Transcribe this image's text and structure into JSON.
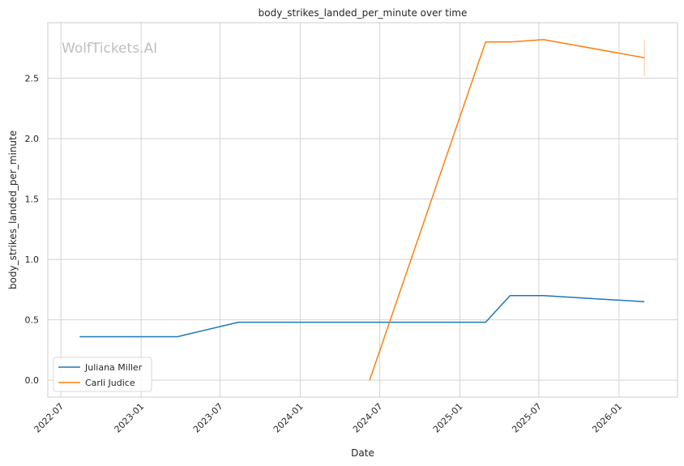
{
  "chart_data": {
    "type": "line",
    "title": "body_strikes_landed_per_minute over time",
    "xlabel": "Date",
    "ylabel": "body_strikes_landed_per_minute",
    "watermark": "WolfTickets.AI",
    "x_axis_type": "date",
    "xlim": [
      "2022-06-01",
      "2026-05-15"
    ],
    "ylim": [
      -0.14,
      2.96
    ],
    "x_ticks": [
      "2022-07",
      "2023-01",
      "2023-07",
      "2024-01",
      "2024-07",
      "2025-01",
      "2025-07",
      "2026-01"
    ],
    "y_ticks": [
      "0.0",
      "0.5",
      "1.0",
      "1.5",
      "2.0",
      "2.5"
    ],
    "grid": true,
    "legend_position": "lower-left",
    "series": [
      {
        "name": "Juliana Miller",
        "color": "#1f77b4",
        "points": [
          {
            "x": "2022-08-13",
            "y": 0.36
          },
          {
            "x": "2023-03-25",
            "y": 0.36
          },
          {
            "x": "2023-08-12",
            "y": 0.48
          },
          {
            "x": "2025-03-01",
            "y": 0.48
          },
          {
            "x": "2025-04-26",
            "y": 0.7
          },
          {
            "x": "2025-07-12",
            "y": 0.7
          },
          {
            "x": "2026-02-28",
            "y": 0.65
          }
        ]
      },
      {
        "name": "Carli Judice",
        "color": "#ff7f0e",
        "points": [
          {
            "x": "2024-06-08",
            "y": 0.0
          },
          {
            "x": "2025-03-01",
            "y": 2.8
          },
          {
            "x": "2025-04-26",
            "y": 2.8
          },
          {
            "x": "2025-07-12",
            "y": 2.82
          },
          {
            "x": "2026-02-28",
            "y": 2.67
          }
        ],
        "error_bar": {
          "x": "2026-02-28",
          "low": 2.52,
          "high": 2.82
        }
      }
    ]
  }
}
